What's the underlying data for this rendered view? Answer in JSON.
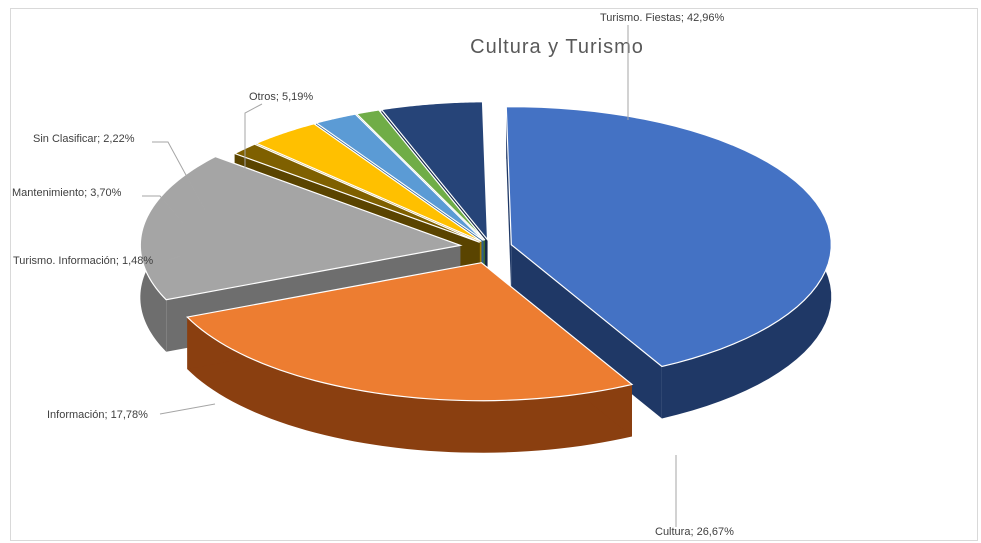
{
  "chart_data": {
    "type": "pie",
    "title": "Cultura y Turismo",
    "slices": [
      {
        "label": "Turismo. Fiestas; 42,96%",
        "name": "Turismo. Fiestas",
        "value": 42.96,
        "color": "#4472c4",
        "side": "#1f3866"
      },
      {
        "label": "Cultura; 26,67%",
        "name": "Cultura",
        "value": 26.67,
        "color": "#ed7d31",
        "side": "#8a3f10"
      },
      {
        "label": "Información; 17,78%",
        "name": "Información",
        "value": 17.78,
        "color": "#a5a5a5",
        "side": "#6e6e6e"
      },
      {
        "label": "Turismo. Información; 1,48%",
        "name": "Turismo. Información",
        "value": 1.48,
        "color": "#7f6000",
        "side": "#5a4400"
      },
      {
        "label": "Mantenimiento; 3,70%",
        "name": "Mantenimiento",
        "value": 3.7,
        "color": "#ffc000",
        "side": "#a67c00"
      },
      {
        "label": "Sin Clasificar; 2,22%",
        "name": "Sin Clasificar",
        "value": 2.22,
        "color": "#5b9bd5",
        "side": "#2e5f8c"
      },
      {
        "label": "",
        "name": "",
        "value": 0.0,
        "color": "#70ad47",
        "side": "#3f6b25"
      },
      {
        "label": "Otros; 5,19%",
        "name": "Otros",
        "value": 5.19,
        "color": "#264478",
        "side": "#142848"
      }
    ],
    "extra_small_slice": {
      "color": "#70ad47",
      "side": "#3f6b25"
    },
    "legend": "none"
  }
}
